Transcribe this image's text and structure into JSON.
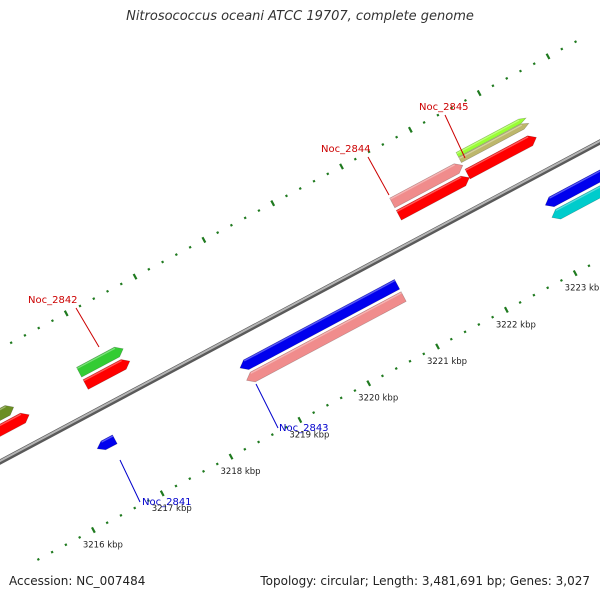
{
  "title": "Nitrosococcus oceani ATCC 19707, complete genome",
  "footer": {
    "accession": "Accession: NC_007484",
    "summary": "Topology: circular; Length: 3,481,691 bp; Genes: 3,027"
  },
  "colors": {
    "forward_label": "#cc0000",
    "reverse_label": "#0000cc",
    "ruler_tick": "#1f7a1f",
    "backbone": "#8c8c8c"
  },
  "ruler": {
    "unit": "kbp",
    "ticks": [
      {
        "label": "3216 kbp",
        "value": 3216
      },
      {
        "label": "3217 kbp",
        "value": 3217
      },
      {
        "label": "3218 kbp",
        "value": 3218
      },
      {
        "label": "3219 kbp",
        "value": 3219
      },
      {
        "label": "3220 kbp",
        "value": 3220
      },
      {
        "label": "3221 kbp",
        "value": 3221
      },
      {
        "label": "3222 kbp",
        "value": 3222
      },
      {
        "label": "3223 kbp",
        "value": 3223
      }
    ]
  },
  "gene_labels": [
    {
      "id": "Noc_2842",
      "label": "Noc_2842",
      "strand": "forward"
    },
    {
      "id": "Noc_2844",
      "label": "Noc_2844",
      "strand": "forward"
    },
    {
      "id": "Noc_2845",
      "label": "Noc_2845",
      "strand": "forward"
    },
    {
      "id": "Noc_2843",
      "label": "Noc_2843",
      "strand": "reverse"
    },
    {
      "id": "Noc_2841",
      "label": "Noc_2841",
      "strand": "reverse"
    }
  ],
  "features": [
    {
      "kind": "cds-forward",
      "color": "#ff0000"
    },
    {
      "kind": "gene-forward",
      "color": "#f08c8c"
    },
    {
      "kind": "cds-reverse",
      "color": "#0000ee"
    },
    {
      "kind": "gene-reverse",
      "color": "#f08c8c"
    },
    {
      "kind": "other-a",
      "color": "#6b8e23"
    },
    {
      "kind": "other-b",
      "color": "#33cc33"
    },
    {
      "kind": "other-c",
      "color": "#99ff33"
    },
    {
      "kind": "other-d",
      "color": "#bdb76b"
    },
    {
      "kind": "other-e",
      "color": "#00cccc"
    }
  ]
}
